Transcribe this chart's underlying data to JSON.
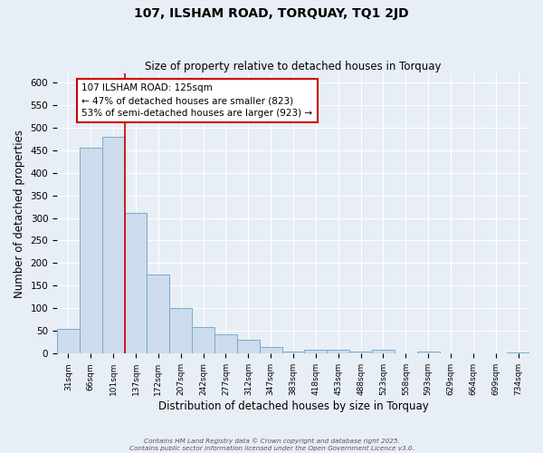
{
  "title": "107, ILSHAM ROAD, TORQUAY, TQ1 2JD",
  "subtitle": "Size of property relative to detached houses in Torquay",
  "xlabel": "Distribution of detached houses by size in Torquay",
  "ylabel": "Number of detached properties",
  "bin_labels": [
    "31sqm",
    "66sqm",
    "101sqm",
    "137sqm",
    "172sqm",
    "207sqm",
    "242sqm",
    "277sqm",
    "312sqm",
    "347sqm",
    "383sqm",
    "418sqm",
    "453sqm",
    "488sqm",
    "523sqm",
    "558sqm",
    "593sqm",
    "629sqm",
    "664sqm",
    "699sqm",
    "734sqm"
  ],
  "bar_heights": [
    55,
    455,
    480,
    312,
    175,
    100,
    58,
    42,
    30,
    15,
    5,
    8,
    8,
    5,
    8,
    0,
    5,
    0,
    0,
    0,
    2
  ],
  "bar_color": "#ccdcec",
  "bar_edgecolor": "#7aaacc",
  "vline_x": 2.5,
  "vline_color": "#cc0000",
  "annotation_text": "107 ILSHAM ROAD: 125sqm\n← 47% of detached houses are smaller (823)\n53% of semi-detached houses are larger (923) →",
  "annotation_box_facecolor": "#ffffff",
  "annotation_box_edgecolor": "#cc0000",
  "ylim": [
    0,
    620
  ],
  "yticks": [
    0,
    50,
    100,
    150,
    200,
    250,
    300,
    350,
    400,
    450,
    500,
    550,
    600
  ],
  "background_color": "#e8eef5",
  "grid_color": "#ffffff",
  "footer_line1": "Contains HM Land Registry data © Crown copyright and database right 2025.",
  "footer_line2": "Contains public sector information licensed under the Open Government Licence v3.0."
}
